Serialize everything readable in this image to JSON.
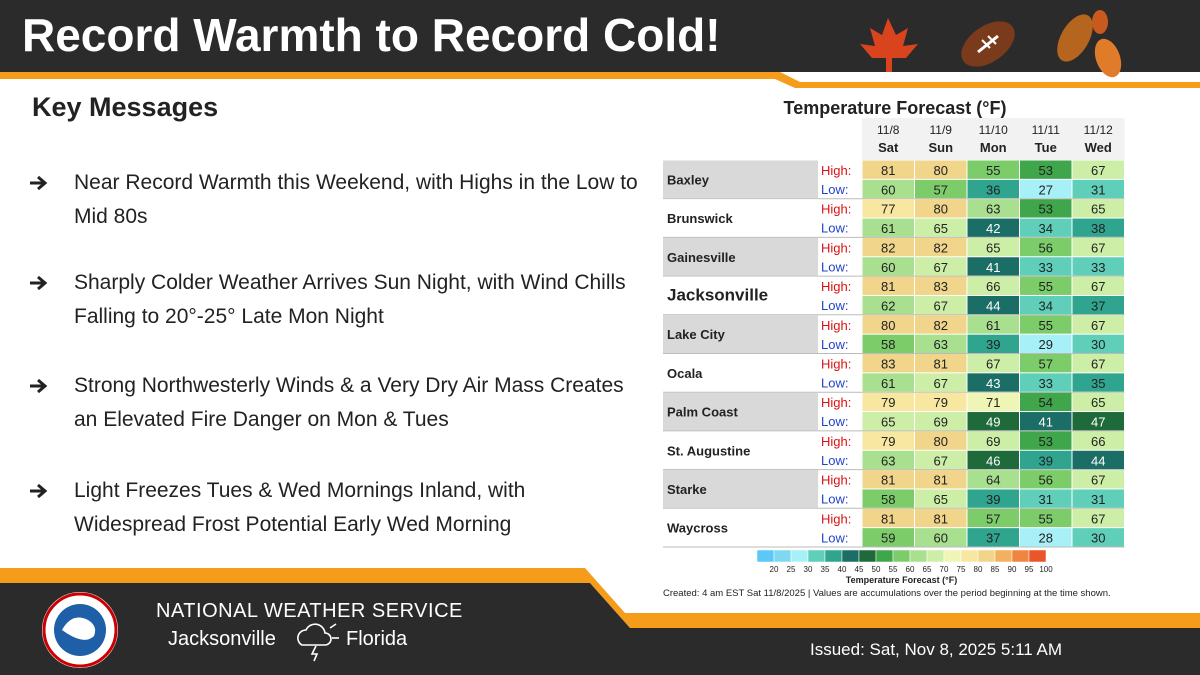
{
  "header": {
    "title": "Record Warmth to Record Cold!"
  },
  "key_messages": {
    "heading": "Key Messages",
    "items": [
      "Near Record Warmth this Weekend, with Highs in the Low to Mid 80s",
      "Sharply Colder Weather Arrives Sun Night, with Wind Chills Falling to 20°-25° Late Mon Night",
      "Strong Northwesterly Winds & a Very Dry Air Mass Creates an Elevated Fire Danger on Mon & Tues",
      "Light Freezes Tues & Wed Mornings Inland, with Widespread Frost Potential Early Wed Morning"
    ]
  },
  "table": {
    "title": "Temperature Forecast (°F)",
    "days": [
      {
        "date": "11/8",
        "day": "Sat"
      },
      {
        "date": "11/9",
        "day": "Sun"
      },
      {
        "date": "11/10",
        "day": "Mon"
      },
      {
        "date": "11/11",
        "day": "Tue"
      },
      {
        "date": "11/12",
        "day": "Wed"
      }
    ],
    "high_label": "High:",
    "low_label": "Low:",
    "rows": [
      {
        "city": "Baxley",
        "high": [
          81,
          80,
          55,
          53,
          67
        ],
        "low": [
          60,
          57,
          36,
          27,
          31
        ]
      },
      {
        "city": "Brunswick",
        "high": [
          77,
          80,
          63,
          53,
          65
        ],
        "low": [
          61,
          65,
          42,
          34,
          38
        ]
      },
      {
        "city": "Gainesville",
        "high": [
          82,
          82,
          65,
          56,
          67
        ],
        "low": [
          60,
          67,
          41,
          33,
          33
        ]
      },
      {
        "city": "Jacksonville",
        "high": [
          81,
          83,
          66,
          55,
          67
        ],
        "low": [
          62,
          67,
          44,
          34,
          37
        ]
      },
      {
        "city": "Lake City",
        "high": [
          80,
          82,
          61,
          55,
          67
        ],
        "low": [
          58,
          63,
          39,
          29,
          30
        ]
      },
      {
        "city": "Ocala",
        "high": [
          83,
          81,
          67,
          57,
          67
        ],
        "low": [
          61,
          67,
          43,
          33,
          35
        ]
      },
      {
        "city": "Palm Coast",
        "high": [
          79,
          79,
          71,
          54,
          65
        ],
        "low": [
          65,
          69,
          49,
          41,
          47
        ]
      },
      {
        "city": "St. Augustine",
        "high": [
          79,
          80,
          69,
          53,
          66
        ],
        "low": [
          63,
          67,
          46,
          39,
          44
        ]
      },
      {
        "city": "Starke",
        "high": [
          81,
          81,
          64,
          56,
          67
        ],
        "low": [
          58,
          65,
          39,
          31,
          31
        ]
      },
      {
        "city": "Waycross",
        "high": [
          81,
          81,
          57,
          55,
          67
        ],
        "low": [
          59,
          60,
          37,
          28,
          30
        ]
      }
    ]
  },
  "legend": {
    "title": "Temperature Forecast (°F)",
    "ticks": [
      20,
      25,
      30,
      35,
      40,
      45,
      50,
      55,
      60,
      65,
      70,
      75,
      80,
      85,
      90,
      95,
      100
    ],
    "colors": [
      "#5bc8f5",
      "#7fd8f0",
      "#a8f0f8",
      "#5fcfb9",
      "#2fa58f",
      "#1b6e65",
      "#1e6a3a",
      "#3fa64c",
      "#7ccd6a",
      "#a8e08f",
      "#cdeea6",
      "#eef5b5",
      "#f7e7a0",
      "#f0d58a",
      "#f4b061",
      "#ef8540",
      "#e8562a"
    ]
  },
  "note": "Created: 4 am EST Sat 11/8/2025  |  Values are accumulations over the period beginning at the time shown.",
  "footer": {
    "org": "NATIONAL WEATHER SERVICE",
    "office": "Jacksonville",
    "state": "Florida",
    "issued": "Issued: Sat, Nov 8, 2025 5:11 AM"
  }
}
